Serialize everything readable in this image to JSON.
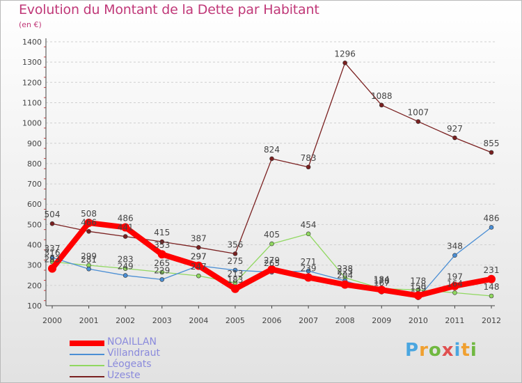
{
  "header": {
    "title": "Evolution du Montant de la Dette par Habitant",
    "subtitle": "(en €)"
  },
  "logo": {
    "text": "Proxiti",
    "letters": [
      "P",
      "r",
      "o",
      "x",
      "i",
      "t",
      "i"
    ],
    "colors": [
      "#4aa6e0",
      "#f0a030",
      "#70b840",
      "#e05050",
      "#4aa6e0",
      "#f0a030",
      "#70b840"
    ]
  },
  "chart_data": {
    "type": "line",
    "x": [
      "2000",
      "2001",
      "2002",
      "2003",
      "2004",
      "2005",
      "2006",
      "2007",
      "2008",
      "2009",
      "2010",
      "2011",
      "2012"
    ],
    "ylim": [
      100,
      1400
    ],
    "yticks": [
      "100",
      "200",
      "300",
      "400",
      "500",
      "600",
      "700",
      "800",
      "900",
      "1000",
      "1100",
      "1200",
      "1300",
      "1400"
    ],
    "grid": "horizontal-dashed",
    "legend_position": "bottom-left",
    "series": [
      {
        "name": "NOAILLAN",
        "color": "#ff0000",
        "values": [
          283,
          508,
          486,
          353,
          297,
          183,
          279,
          239,
          204,
          178,
          150,
          197,
          231
        ],
        "labels": [
          "283",
          "508",
          "486",
          "353",
          "297",
          "183",
          "279",
          "239",
          "204",
          "178",
          "150",
          "197",
          "231"
        ]
      },
      {
        "name": "Villandraut",
        "color": "#4a8ed4",
        "values": [
          337,
          281,
          249,
          229,
          297,
          275,
          265,
          271,
          223,
          167,
          139,
          348,
          486
        ],
        "labels": [
          "337",
          "281",
          "249",
          "229",
          "297",
          "275",
          "265",
          "271",
          "223",
          "167",
          "139",
          "348",
          "486"
        ]
      },
      {
        "name": "Léogeats",
        "color": "#90d860",
        "values": [
          316,
          299,
          283,
          265,
          247,
          213,
          405,
          454,
          238,
          184,
          178,
          164,
          148
        ],
        "labels": [
          "316",
          "299",
          "283",
          "265",
          "247",
          "213",
          "405",
          "454",
          "238",
          "184",
          "178",
          "164",
          "148"
        ]
      },
      {
        "name": "Uzeste",
        "color": "#7a2020",
        "values": [
          504,
          466,
          441,
          415,
          387,
          356,
          824,
          783,
          1296,
          1088,
          1007,
          927,
          855
        ],
        "labels": [
          "504",
          "466",
          "441",
          "415",
          "387",
          "356",
          "824",
          "783",
          "1296",
          "1088",
          "1007",
          "927",
          "855"
        ]
      }
    ]
  }
}
